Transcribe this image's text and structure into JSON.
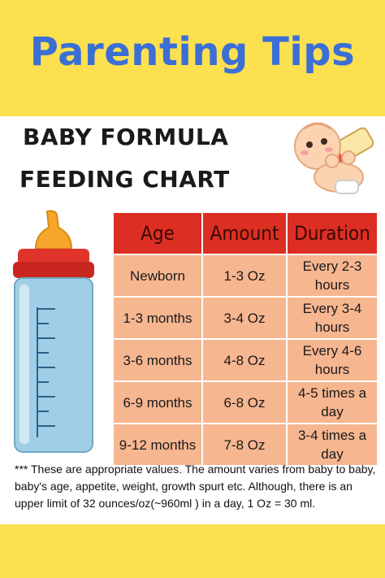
{
  "header": {
    "title": "Parenting Tips"
  },
  "chart_heading": {
    "line1": "BABY FORMULA",
    "line2": "FEEDING CHART"
  },
  "table": {
    "headers": [
      "Age",
      "Amount",
      "Duration"
    ],
    "rows": [
      [
        "Newborn",
        "1-3 Oz",
        "Every 2-3 hours"
      ],
      [
        "1-3  months",
        "3-4 Oz",
        "Every 3-4 hours"
      ],
      [
        "3-6 months",
        "4-8 Oz",
        "Every 4-6 hours"
      ],
      [
        "6-9 months",
        "6-8 Oz",
        "4-5 times a day"
      ],
      [
        "9-12 months",
        "7-8 Oz",
        "3-4 times a day"
      ]
    ]
  },
  "note": "*** These are appropriate values.  The amount varies from baby to baby, baby's age, appetite, weight, growth spurt etc.  Although,  there is an upper limit of 32 ounces/oz(~960ml ) in a day, 1 Oz = 30 ml.",
  "illustrations": {
    "baby": "baby-drinking-bottle-illustration",
    "bottle": "baby-bottle-illustration"
  },
  "colors": {
    "band": "#fce04f",
    "title": "#3b6fd6",
    "table_header": "#dc2e22",
    "table_cell": "#f6b690"
  }
}
